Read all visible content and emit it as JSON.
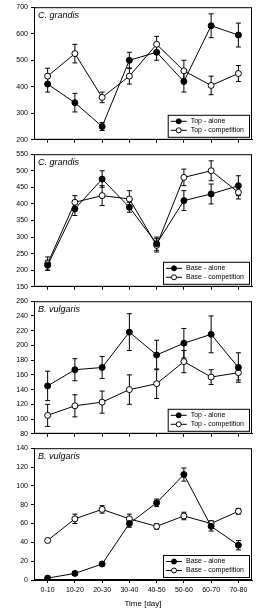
{
  "chart_data": [
    {
      "type": "line",
      "title": "C. grandis",
      "categories": [
        "0-10",
        "10-20",
        "20-30",
        "30-40",
        "40-50",
        "50-60",
        "60-70",
        "70-80"
      ],
      "series": [
        {
          "name": "Top - alone",
          "color": "#000000",
          "marker": "circle",
          "line_style": "solid",
          "values": [
            410,
            340,
            250,
            500,
            530,
            420,
            630,
            595
          ],
          "errors": [
            30,
            35,
            15,
            30,
            30,
            40,
            45,
            45
          ]
        },
        {
          "name": "Top - competition",
          "color": "#000000",
          "marker": "circle_open",
          "line_style": "solid",
          "values": [
            440,
            525,
            360,
            440,
            560,
            460,
            405,
            450
          ],
          "errors": [
            30,
            35,
            20,
            30,
            30,
            40,
            35,
            30
          ]
        }
      ],
      "ylim": [
        200,
        700
      ],
      "yticks": [
        200,
        300,
        400,
        500,
        600,
        700
      ],
      "grid": false,
      "legend": "lower right",
      "tick_labels": "y"
    },
    {
      "type": "line",
      "title": "C. grandis",
      "categories": [
        "0-10",
        "10-20",
        "20-30",
        "30-40",
        "40-50",
        "50-60",
        "60-70",
        "70-80"
      ],
      "series": [
        {
          "name": "Base - alone",
          "color": "#000000",
          "marker": "circle",
          "line_style": "solid",
          "values": [
            215,
            385,
            475,
            390,
            280,
            410,
            430,
            455
          ],
          "errors": [
            15,
            20,
            25,
            15,
            20,
            30,
            30,
            30
          ]
        },
        {
          "name": "Base - competition",
          "color": "#000000",
          "marker": "circle_open",
          "line_style": "solid",
          "values": [
            220,
            405,
            425,
            415,
            275,
            480,
            500,
            435
          ],
          "errors": [
            20,
            20,
            30,
            25,
            20,
            25,
            30,
            20
          ]
        }
      ],
      "ylim": [
        150,
        550
      ],
      "yticks": [
        150,
        200,
        250,
        300,
        350,
        400,
        450,
        500,
        550
      ],
      "grid": false,
      "legend": "lower right",
      "tick_labels": "y"
    },
    {
      "type": "line",
      "title": "B. vulgaris",
      "categories": [
        "0-10",
        "10-20",
        "20-30",
        "30-40",
        "40-50",
        "50-60",
        "60-70",
        "70-80"
      ],
      "series": [
        {
          "name": "Top - alone",
          "color": "#000000",
          "marker": "circle",
          "line_style": "solid",
          "values": [
            145,
            167,
            170,
            218,
            187,
            203,
            215,
            170
          ],
          "errors": [
            20,
            15,
            15,
            25,
            20,
            20,
            25,
            20
          ]
        },
        {
          "name": "Top - competition",
          "color": "#000000",
          "marker": "circle_open",
          "line_style": "solid",
          "values": [
            105,
            118,
            123,
            140,
            148,
            178,
            157,
            163
          ],
          "errors": [
            15,
            15,
            15,
            20,
            20,
            15,
            10,
            10
          ]
        }
      ],
      "ylim": [
        80,
        260
      ],
      "yticks": [
        80,
        100,
        120,
        140,
        160,
        180,
        200,
        220,
        240,
        260
      ],
      "grid": false,
      "legend": "lower right",
      "tick_labels": "y"
    },
    {
      "type": "line",
      "title": "B. vulgaris",
      "x_label": "Time [day]",
      "categories": [
        "0-10",
        "10-20",
        "20-30",
        "30-40",
        "40-50",
        "50-60",
        "60-70",
        "70-80"
      ],
      "series": [
        {
          "name": "Base - alone",
          "color": "#000000",
          "marker": "circle",
          "line_style": "solid",
          "values": [
            2,
            7,
            17,
            60,
            82,
            112,
            57,
            37
          ],
          "errors": [
            1,
            2,
            2,
            4,
            4,
            7,
            5,
            5
          ]
        },
        {
          "name": "Base - competition",
          "color": "#000000",
          "marker": "circle_open",
          "line_style": "solid",
          "values": [
            42,
            65,
            75,
            65,
            57,
            68,
            60,
            73
          ],
          "errors": [
            2,
            5,
            4,
            5,
            3,
            4,
            3,
            3
          ]
        }
      ],
      "ylim": [
        0,
        140
      ],
      "yticks": [
        0,
        20,
        40,
        60,
        80,
        100,
        120,
        140
      ],
      "grid": false,
      "legend": "lower right",
      "tick_labels": true
    }
  ]
}
